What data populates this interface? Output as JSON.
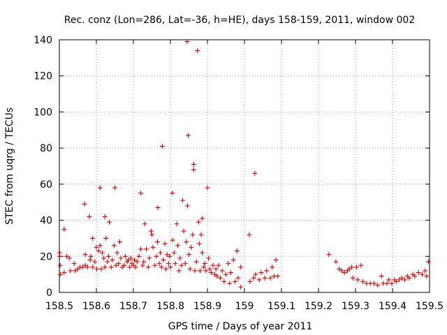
{
  "chart_data": {
    "type": "scatter",
    "title": "Rec. conz (Lon=286, Lat=-36, h=HE), days 158-159, 2011, window 002",
    "xlabel": "GPS time / Days of year 2011",
    "ylabel": "STEC from uqrg / TECUs",
    "xlim": [
      158.5,
      159.5
    ],
    "ylim": [
      0,
      140
    ],
    "xticks": [
      158.5,
      158.6,
      158.7,
      158.8,
      158.9,
      159,
      159.1,
      159.2,
      159.3,
      159.4,
      159.5
    ],
    "xtick_labels": [
      "158.5",
      "158.6",
      "158.7",
      "158.8",
      "158.9",
      "159",
      "159.1",
      "159.2",
      "159.3",
      "159.4",
      "159.5"
    ],
    "yticks": [
      0,
      20,
      40,
      60,
      80,
      100,
      120,
      140
    ],
    "ytick_labels": [
      "0",
      "20",
      "40",
      "60",
      "80",
      "100",
      "120",
      "140"
    ],
    "grid": true,
    "marker": "+",
    "color": "#cc0000",
    "series": [
      {
        "points": [
          [
            158.501,
            22
          ],
          [
            158.501,
            20
          ],
          [
            158.502,
            15
          ],
          [
            158.503,
            10
          ],
          [
            158.513,
            35
          ],
          [
            158.513,
            11
          ],
          [
            158.52,
            20
          ],
          [
            158.527,
            19
          ],
          [
            158.53,
            12
          ],
          [
            158.54,
            16
          ],
          [
            158.543,
            12
          ],
          [
            158.55,
            13
          ],
          [
            158.556,
            14
          ],
          [
            158.563,
            14
          ],
          [
            158.57,
            15
          ],
          [
            158.568,
            49
          ],
          [
            158.57,
            21
          ],
          [
            158.576,
            14
          ],
          [
            158.581,
            42
          ],
          [
            158.583,
            18
          ],
          [
            158.585,
            20
          ],
          [
            158.59,
            30
          ],
          [
            158.59,
            14
          ],
          [
            158.596,
            17
          ],
          [
            158.6,
            25
          ],
          [
            158.601,
            13
          ],
          [
            158.606,
            23
          ],
          [
            158.61,
            26
          ],
          [
            158.61,
            58
          ],
          [
            158.613,
            13
          ],
          [
            158.616,
            22
          ],
          [
            158.62,
            19
          ],
          [
            158.623,
            42
          ],
          [
            158.623,
            14
          ],
          [
            158.626,
            30
          ],
          [
            158.63,
            17
          ],
          [
            158.633,
            20
          ],
          [
            158.635,
            39
          ],
          [
            158.64,
            14
          ],
          [
            158.643,
            18
          ],
          [
            158.648,
            26
          ],
          [
            158.65,
            58
          ],
          [
            158.653,
            15
          ],
          [
            158.656,
            22
          ],
          [
            158.66,
            16
          ],
          [
            158.663,
            28
          ],
          [
            158.666,
            19
          ],
          [
            158.67,
            14
          ],
          [
            158.675,
            15
          ],
          [
            158.678,
            20
          ],
          [
            158.683,
            17
          ],
          [
            158.686,
            18
          ],
          [
            158.69,
            14
          ],
          [
            158.693,
            19
          ],
          [
            158.696,
            16
          ],
          [
            158.7,
            15
          ],
          [
            158.703,
            18
          ],
          [
            158.706,
            14
          ],
          [
            158.71,
            17
          ],
          [
            158.715,
            20
          ],
          [
            158.72,
            55
          ],
          [
            158.72,
            24
          ],
          [
            158.725,
            15
          ],
          [
            158.728,
            17
          ],
          [
            158.731,
            38
          ],
          [
            158.735,
            24
          ],
          [
            158.74,
            14
          ],
          [
            158.743,
            19
          ],
          [
            158.748,
            34
          ],
          [
            158.75,
            32
          ],
          [
            158.753,
            25
          ],
          [
            158.758,
            15
          ],
          [
            158.762,
            20
          ],
          [
            158.765,
            28
          ],
          [
            158.766,
            47
          ],
          [
            158.77,
            16
          ],
          [
            158.773,
            22
          ],
          [
            158.776,
            14
          ],
          [
            158.778,
            81
          ],
          [
            158.781,
            18
          ],
          [
            158.785,
            27
          ],
          [
            158.788,
            13
          ],
          [
            158.791,
            21
          ],
          [
            158.795,
            16
          ],
          [
            158.798,
            20
          ],
          [
            158.8,
            14
          ],
          [
            158.805,
            55
          ],
          [
            158.806,
            29
          ],
          [
            158.81,
            22
          ],
          [
            158.813,
            16
          ],
          [
            158.817,
            38
          ],
          [
            158.82,
            26
          ],
          [
            158.823,
            12
          ],
          [
            158.826,
            19
          ],
          [
            158.83,
            15
          ],
          [
            158.833,
            51
          ],
          [
            158.836,
            34
          ],
          [
            158.84,
            16
          ],
          [
            158.843,
            28
          ],
          [
            158.845,
            139
          ],
          [
            158.846,
            48
          ],
          [
            158.848,
            87
          ],
          [
            158.85,
            21
          ],
          [
            158.853,
            13
          ],
          [
            158.856,
            25
          ],
          [
            158.86,
            32
          ],
          [
            158.863,
            71
          ],
          [
            158.863,
            68
          ],
          [
            158.866,
            12
          ],
          [
            158.87,
            17
          ],
          [
            158.873,
            134
          ],
          [
            158.876,
            39
          ],
          [
            158.878,
            27
          ],
          [
            158.88,
            12
          ],
          [
            158.883,
            32
          ],
          [
            158.886,
            41
          ],
          [
            158.886,
            22
          ],
          [
            158.89,
            14
          ],
          [
            158.893,
            16
          ],
          [
            158.896,
            12
          ],
          [
            158.9,
            58
          ],
          [
            158.903,
            19
          ],
          [
            158.906,
            13
          ],
          [
            158.91,
            11
          ],
          [
            158.915,
            15
          ],
          [
            158.92,
            10
          ],
          [
            158.923,
            13
          ],
          [
            158.926,
            9
          ],
          [
            158.93,
            15
          ],
          [
            158.935,
            8
          ],
          [
            158.94,
            12
          ],
          [
            158.945,
            6
          ],
          [
            158.95,
            10
          ],
          [
            158.956,
            16
          ],
          [
            158.96,
            5
          ],
          [
            158.963,
            11
          ],
          [
            158.97,
            18
          ],
          [
            158.975,
            6
          ],
          [
            158.98,
            23
          ],
          [
            158.983,
            8
          ],
          [
            158.99,
            3
          ],
          [
            158.99,
            14
          ],
          [
            159.013,
            32
          ],
          [
            159.015,
            6
          ],
          [
            159.025,
            8
          ],
          [
            159.028,
            66
          ],
          [
            159.03,
            10
          ],
          [
            159.04,
            7
          ],
          [
            159.045,
            11
          ],
          [
            159.055,
            8
          ],
          [
            159.06,
            12
          ],
          [
            159.07,
            8
          ],
          [
            159.075,
            14
          ],
          [
            159.08,
            9
          ],
          [
            159.085,
            18
          ],
          [
            159.09,
            9
          ],
          [
            159.228,
            21
          ],
          [
            159.247,
            17
          ],
          [
            159.256,
            13
          ],
          [
            159.263,
            12
          ],
          [
            159.27,
            11
          ],
          [
            159.278,
            12
          ],
          [
            159.283,
            13
          ],
          [
            159.29,
            14
          ],
          [
            159.293,
            8
          ],
          [
            159.303,
            14
          ],
          [
            159.306,
            7
          ],
          [
            159.315,
            15
          ],
          [
            159.32,
            6
          ],
          [
            159.33,
            5
          ],
          [
            159.34,
            5
          ],
          [
            159.35,
            5
          ],
          [
            159.36,
            4
          ],
          [
            159.37,
            9
          ],
          [
            159.375,
            5
          ],
          [
            159.385,
            5
          ],
          [
            159.39,
            7
          ],
          [
            159.398,
            5
          ],
          [
            159.405,
            7
          ],
          [
            159.41,
            6
          ],
          [
            159.418,
            7
          ],
          [
            159.425,
            8
          ],
          [
            159.433,
            7
          ],
          [
            159.44,
            9
          ],
          [
            159.445,
            8
          ],
          [
            159.455,
            10
          ],
          [
            159.46,
            9
          ],
          [
            159.47,
            11
          ],
          [
            159.48,
            10
          ],
          [
            159.488,
            12
          ],
          [
            159.492,
            9
          ],
          [
            159.497,
            17
          ]
        ]
      }
    ]
  }
}
